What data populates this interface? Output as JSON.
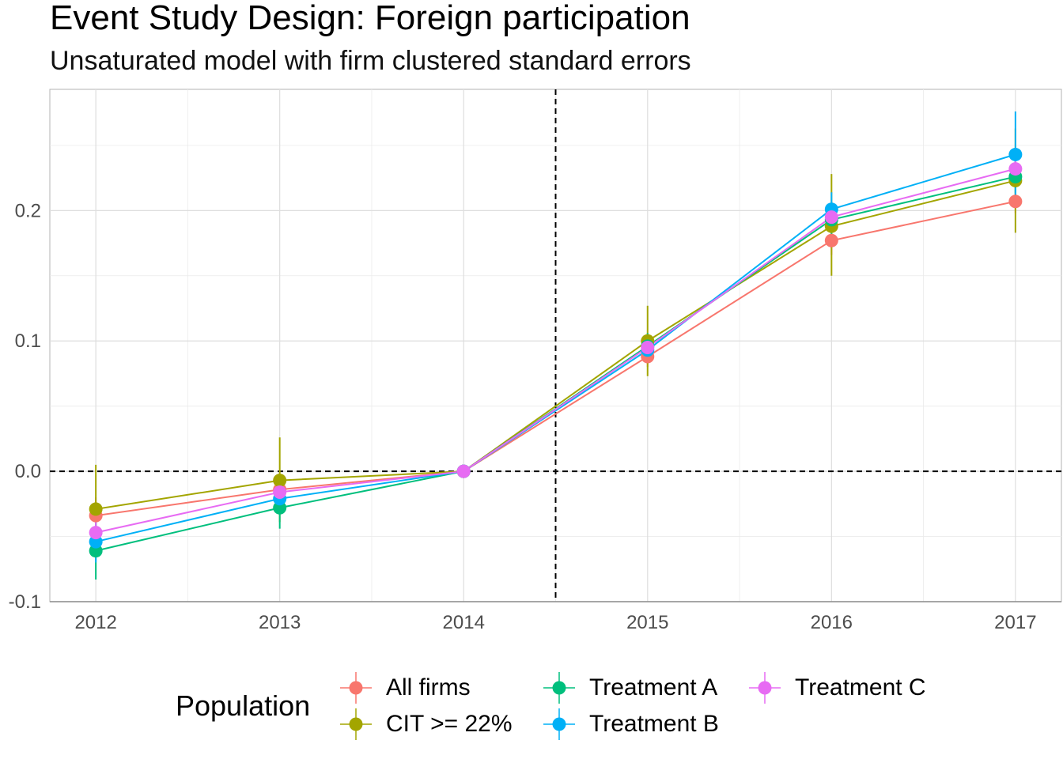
{
  "chart_data": {
    "type": "line",
    "title": "Event Study Design: Foreign participation",
    "subtitle": "Unsaturated model with firm clustered standard errors",
    "x": [
      2012,
      2013,
      2014,
      2015,
      2016,
      2017
    ],
    "x_tick_labels": [
      "2012",
      "2013",
      "2014",
      "2015",
      "2016",
      "2017"
    ],
    "y_tick_labels": [
      "-0.1",
      "0.0",
      "0.1",
      "0.2"
    ],
    "y_ticks": [
      -0.1,
      0.0,
      0.1,
      0.2
    ],
    "xlim": [
      2011.75,
      2017.25
    ],
    "ylim": [
      -0.1,
      0.293
    ],
    "xlabel": "",
    "ylabel": "",
    "grid": true,
    "reference_lines": [
      {
        "orientation": "vertical",
        "value": 2014.5,
        "style": "dashed"
      },
      {
        "orientation": "horizontal",
        "value": 0.0,
        "style": "dashed"
      }
    ],
    "legend": {
      "title": "Population",
      "position": "bottom"
    },
    "series": [
      {
        "name": "All firms",
        "color": "#F8766D",
        "values": [
          -0.034,
          -0.014,
          0.0,
          0.088,
          0.177,
          0.207
        ],
        "ci_low": [
          -0.048,
          -0.024,
          0.0,
          0.08,
          0.166,
          0.198
        ],
        "ci_high": [
          -0.02,
          -0.004,
          0.0,
          0.096,
          0.188,
          0.216
        ]
      },
      {
        "name": "CIT >= 22%",
        "color": "#A3A500",
        "values": [
          -0.029,
          -0.007,
          0.0,
          0.1,
          0.188,
          0.223
        ],
        "ci_low": [
          -0.063,
          -0.039,
          0.0,
          0.073,
          0.15,
          0.183
        ],
        "ci_high": [
          0.005,
          0.026,
          0.0,
          0.127,
          0.228,
          0.263
        ]
      },
      {
        "name": "Treatment A",
        "color": "#00BF7D",
        "values": [
          -0.061,
          -0.028,
          0.0,
          0.096,
          0.193,
          0.226
        ],
        "ci_low": [
          -0.083,
          -0.044,
          0.0,
          0.086,
          0.181,
          0.213
        ],
        "ci_high": [
          -0.039,
          -0.012,
          0.0,
          0.106,
          0.205,
          0.239
        ]
      },
      {
        "name": "Treatment B",
        "color": "#00B0F6",
        "values": [
          -0.054,
          -0.021,
          0.0,
          0.093,
          0.201,
          0.243
        ],
        "ci_low": [
          -0.07,
          -0.033,
          0.0,
          0.083,
          0.188,
          0.21
        ],
        "ci_high": [
          -0.038,
          -0.009,
          0.0,
          0.103,
          0.214,
          0.276
        ]
      },
      {
        "name": "Treatment C",
        "color": "#E76BF3",
        "values": [
          -0.047,
          -0.016,
          0.0,
          0.095,
          0.195,
          0.232
        ],
        "ci_low": [
          -0.058,
          -0.025,
          0.0,
          0.087,
          0.186,
          0.222
        ],
        "ci_high": [
          -0.036,
          -0.007,
          0.0,
          0.103,
          0.204,
          0.242
        ]
      }
    ]
  }
}
